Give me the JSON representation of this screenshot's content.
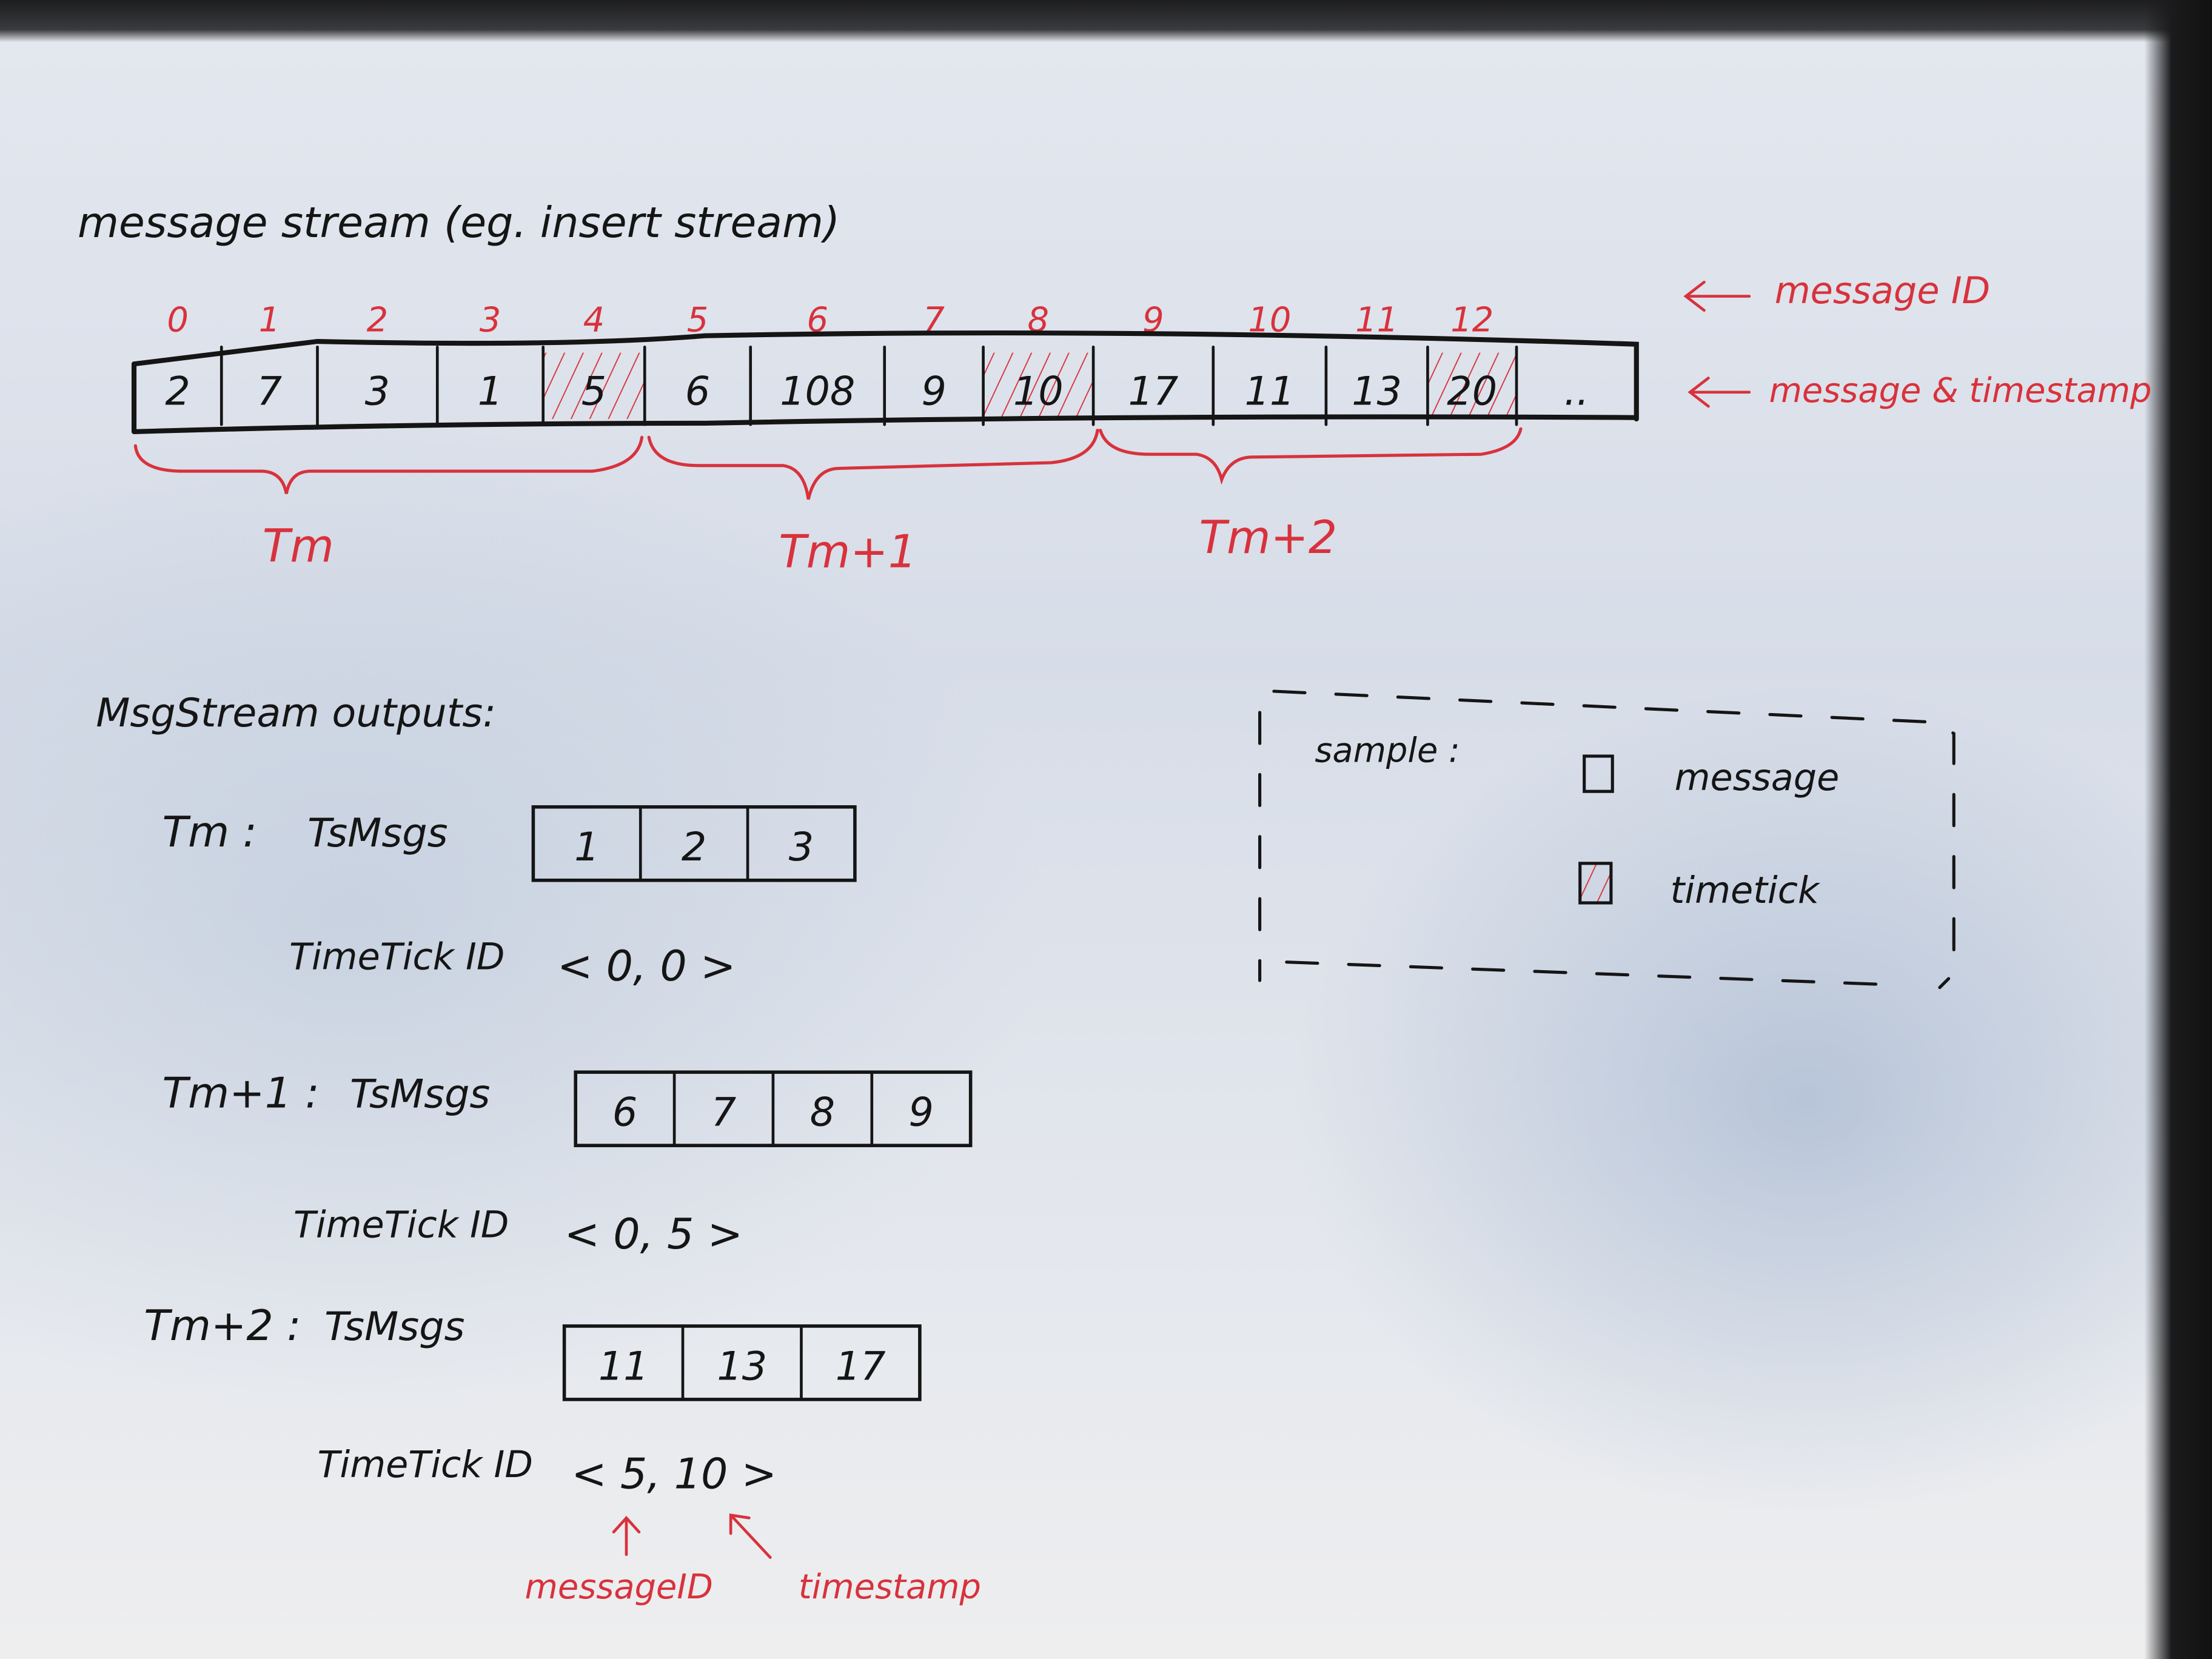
{
  "title": "message stream (eg. insert stream)",
  "colors": {
    "ink": "#151515",
    "red": "#d8323c"
  },
  "stream": {
    "ids": [
      "0",
      "1",
      "2",
      "3",
      "4",
      "5",
      "6",
      "7",
      "8",
      "9",
      "10",
      "11",
      "12"
    ],
    "cells": [
      {
        "value": "2",
        "timetick": false
      },
      {
        "value": "7",
        "timetick": false
      },
      {
        "value": "3",
        "timetick": false
      },
      {
        "value": "1",
        "timetick": false
      },
      {
        "value": "5",
        "timetick": true
      },
      {
        "value": "6",
        "timetick": false
      },
      {
        "value": "108",
        "timetick": false
      },
      {
        "value": "9",
        "timetick": false
      },
      {
        "value": "10",
        "timetick": true
      },
      {
        "value": "17",
        "timetick": false
      },
      {
        "value": "11",
        "timetick": false
      },
      {
        "value": "13",
        "timetick": false
      },
      {
        "value": "20",
        "timetick": true
      },
      {
        "value": "..",
        "timetick": false
      }
    ],
    "id_label": "message ID",
    "value_label": "message & timestamp",
    "groups": [
      "Tm",
      "Tm+1",
      "Tm+2"
    ]
  },
  "outputs": {
    "heading": "MsgStream outputs:",
    "msgs_label": "TsMsgs",
    "timetick_label": "TimeTick ID",
    "items": [
      {
        "name": "Tm",
        "msgs": [
          "1",
          "2",
          "3"
        ],
        "timetick": "< 0, 0 >"
      },
      {
        "name": "Tm+1",
        "msgs": [
          "6",
          "7",
          "8",
          "9"
        ],
        "timetick": "< 0, 5 >"
      },
      {
        "name": "Tm+2",
        "msgs": [
          "11",
          "13",
          "17"
        ],
        "timetick": "< 5, 10 >"
      }
    ],
    "annotation_message_id": "messageID",
    "annotation_timestamp": "timestamp"
  },
  "legend": {
    "title": "sample :",
    "message": "message",
    "timetick": "timetick"
  }
}
